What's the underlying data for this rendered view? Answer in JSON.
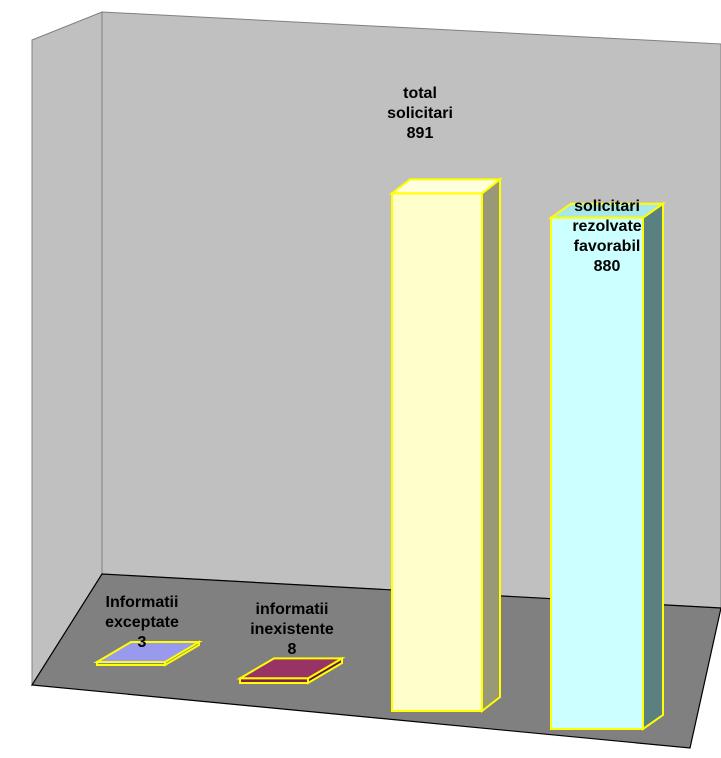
{
  "chart_data": {
    "type": "bar",
    "categories": [
      "Informatii exceptate",
      "informatii inexistente",
      "total solicitari",
      "solicitari rezolvate favorabil"
    ],
    "series": [
      {
        "values": [
          3,
          8,
          891,
          880
        ]
      }
    ],
    "title": "",
    "xlabel": "",
    "ylabel": "",
    "ylim": [
      0,
      1000
    ],
    "grid": false,
    "labels": [
      {
        "lines": [
          "Informatii",
          "exceptate"
        ],
        "value": "3"
      },
      {
        "lines": [
          "informatii",
          "inexistente"
        ],
        "value": "8"
      },
      {
        "lines": [
          "total",
          "solicitari"
        ],
        "value": "891"
      },
      {
        "lines": [
          "solicitari",
          "rezolvate",
          "favorabil"
        ],
        "value": "880"
      }
    ]
  },
  "colors": {
    "wall": "#c0c0c0",
    "wall_edge": "#808080",
    "floor": "#808080",
    "outline": "#ffff00",
    "bars": [
      {
        "front": "#7f7fdf",
        "top": "#9999ee",
        "side": "#5a5aa8"
      },
      {
        "front": "#7f1f4f",
        "top": "#993366",
        "side": "#5c1539"
      },
      {
        "front": "#ffffcc",
        "top": "#ffffdd",
        "side": "#999977"
      },
      {
        "front": "#ccffff",
        "top": "#a8e8e8",
        "side": "#5a8080"
      }
    ]
  }
}
